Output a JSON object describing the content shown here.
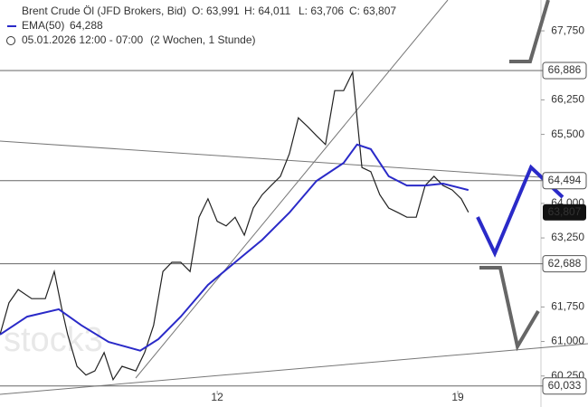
{
  "chart_data": {
    "type": "line",
    "header": {
      "instrument": "Brent Crude Öl (JFD Brokers, Bid)",
      "ohlc": [
        "O: 63,991",
        "H: 64,011",
        "L: 63,706",
        "C: 63,807"
      ],
      "ema_label": "EMA(50)",
      "ema_value": "64,288",
      "range": "05.01.2026 12:00 - 07:00",
      "period": "(2 Wochen, 1 Stunde)"
    },
    "watermark": "stock3",
    "xlim": [
      5.68,
      21.42
    ],
    "xticks": [
      12,
      19
    ],
    "ylim": [
      59.93,
      68.42
    ],
    "yticks": [
      {
        "value": 67.75,
        "label": "67,750"
      },
      {
        "value": 66.25,
        "label": "66,250"
      },
      {
        "value": 65.5,
        "label": "65,500"
      },
      {
        "value": 64.0,
        "label": "64,000"
      },
      {
        "value": 63.25,
        "label": "63,250"
      },
      {
        "value": 61.75,
        "label": "61,750"
      },
      {
        "value": 61.0,
        "label": "61,000"
      },
      {
        "value": 60.25,
        "label": "60,250"
      }
    ],
    "levels": [
      {
        "value": 66.886,
        "label": "66,886"
      },
      {
        "value": 64.494,
        "label": "64,494"
      },
      {
        "value": 62.688,
        "label": "62,688"
      },
      {
        "value": 60.033,
        "label": "60,033"
      }
    ],
    "last": {
      "value": 63.807,
      "label": "63,807"
    },
    "series": [
      {
        "name": "Brent Crude Öl",
        "color": "#222222",
        "x": [
          5.68,
          5.94,
          6.21,
          6.6,
          7.0,
          7.26,
          7.47,
          7.65,
          7.92,
          8.18,
          8.44,
          8.71,
          8.97,
          9.23,
          9.63,
          9.89,
          10.15,
          10.42,
          10.68,
          10.94,
          11.21,
          11.47,
          11.73,
          12.0,
          12.26,
          12.52,
          12.79,
          13.05,
          13.31,
          13.57,
          13.84,
          14.1,
          14.36,
          14.63,
          14.89,
          15.15,
          15.42,
          15.68,
          15.94,
          16.07,
          16.21,
          16.47,
          16.73,
          16.99,
          17.26,
          17.52,
          17.79,
          18.05,
          18.31,
          18.57,
          18.84,
          19.1,
          19.31
        ],
        "values": [
          61.15,
          61.84,
          62.13,
          61.93,
          61.93,
          62.52,
          61.74,
          61.15,
          60.46,
          60.27,
          60.36,
          60.76,
          60.17,
          60.46,
          60.36,
          60.76,
          61.35,
          62.52,
          62.72,
          62.72,
          62.52,
          63.7,
          64.1,
          63.61,
          63.51,
          63.7,
          63.31,
          63.9,
          64.19,
          64.39,
          64.59,
          65.08,
          65.86,
          65.67,
          65.47,
          65.28,
          66.45,
          66.45,
          66.85,
          65.86,
          64.78,
          64.69,
          64.19,
          63.9,
          63.8,
          63.7,
          63.7,
          64.39,
          64.59,
          64.39,
          64.29,
          64.1,
          63.807
        ]
      },
      {
        "name": "EMA(50)",
        "color": "#2a2ac8",
        "x": [
          5.68,
          6.47,
          7.39,
          8.05,
          8.84,
          9.76,
          10.29,
          10.94,
          11.73,
          12.52,
          13.31,
          14.1,
          14.89,
          15.68,
          16.07,
          16.47,
          16.99,
          17.52,
          18.05,
          18.57,
          19.31
        ],
        "values": [
          61.15,
          61.54,
          61.7,
          61.35,
          60.99,
          60.8,
          61.05,
          61.54,
          62.23,
          62.72,
          63.21,
          63.8,
          64.49,
          64.88,
          65.28,
          65.18,
          64.59,
          64.39,
          64.39,
          64.43,
          64.29
        ]
      }
    ]
  }
}
